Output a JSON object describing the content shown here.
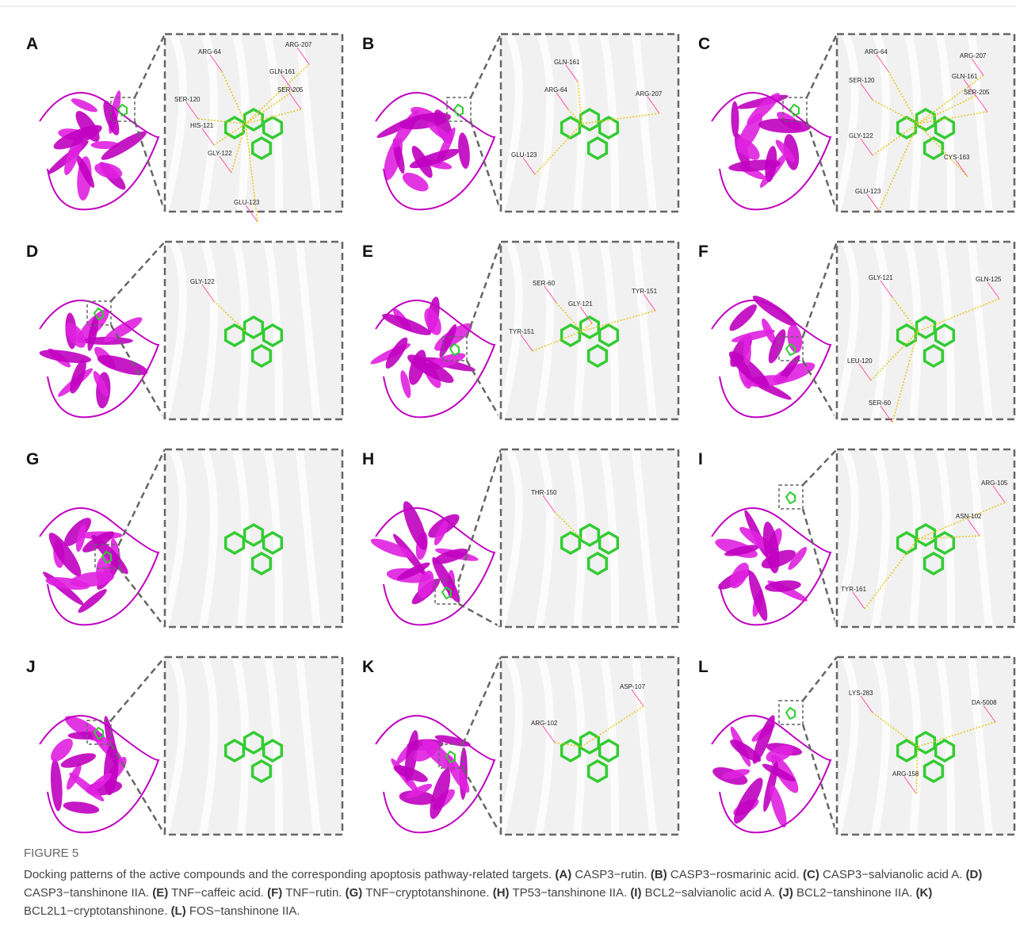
{
  "figure": {
    "panels": [
      {
        "letter": "A",
        "residues": [
          "ARG-64",
          "ARG-207",
          "GLN-161",
          "SER-205",
          "SER-120",
          "HIS-121",
          "GLY-122",
          "GLU-123"
        ]
      },
      {
        "letter": "B",
        "residues": [
          "GLN-161",
          "ARG-64",
          "ARG-207",
          "GLU-123"
        ]
      },
      {
        "letter": "C",
        "residues": [
          "ARG-64",
          "ARG-207",
          "SER-120",
          "GLN-161",
          "SER-205",
          "GLY-122",
          "CYS-163",
          "GLU-123"
        ]
      },
      {
        "letter": "D",
        "residues": [
          "GLY-122"
        ]
      },
      {
        "letter": "E",
        "residues": [
          "SER-60",
          "GLY-121",
          "TYR-151",
          "TYR-151"
        ]
      },
      {
        "letter": "F",
        "residues": [
          "GLY-121",
          "GLN-125",
          "LEU-120",
          "SER-60"
        ]
      },
      {
        "letter": "G",
        "residues": []
      },
      {
        "letter": "H",
        "residues": [
          "THR-150"
        ]
      },
      {
        "letter": "I",
        "residues": [
          "ARG-105",
          "ASN-102",
          "TYR-161"
        ]
      },
      {
        "letter": "J",
        "residues": []
      },
      {
        "letter": "K",
        "residues": [
          "ASP-107",
          "ARG-102"
        ]
      },
      {
        "letter": "L",
        "residues": [
          "DA-5008",
          "LYS-283",
          "ARG-158"
        ]
      }
    ]
  },
  "caption": {
    "label": "FIGURE 5",
    "intro": "Docking patterns of the active compounds and the corresponding apoptosis pathway-related targets.",
    "items": [
      {
        "tag": "(A)",
        "text": "CASP3−rutin."
      },
      {
        "tag": "(B)",
        "text": "CASP3−rosmarinic acid."
      },
      {
        "tag": "(C)",
        "text": "CASP3−salvianolic acid A."
      },
      {
        "tag": "(D)",
        "text": "CASP3−tanshinone IIA."
      },
      {
        "tag": "(E)",
        "text": "TNF−caffeic acid."
      },
      {
        "tag": "(F)",
        "text": "TNF−rutin."
      },
      {
        "tag": "(G)",
        "text": "TNF−cryptotanshinone."
      },
      {
        "tag": "(H)",
        "text": "TP53−tanshinone IIA."
      },
      {
        "tag": "(I)",
        "text": "BCL2−salvianolic acid A."
      },
      {
        "tag": "(J)",
        "text": "BCL2−tanshinone IIA."
      },
      {
        "tag": "(K)",
        "text": "BCL2L1−cryptotanshinone."
      },
      {
        "tag": "(L)",
        "text": "FOS−tanshinone IIA."
      }
    ]
  }
}
